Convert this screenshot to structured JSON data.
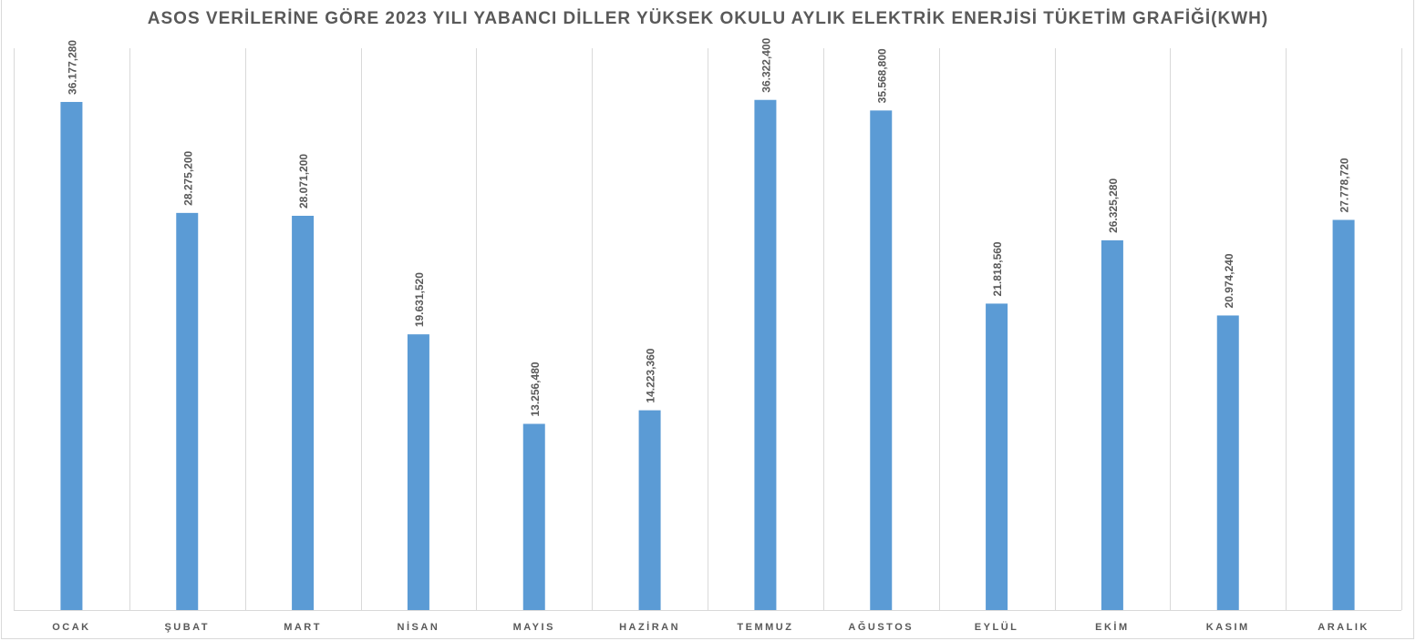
{
  "chart_data": {
    "type": "bar",
    "title": "ASOS VERİLERİNE GÖRE 2023 YILI YABANCI DİLLER YÜKSEK OKULU AYLIK ELEKTRİK ENERJİSİ TÜKETİM GRAFİĞİ(KWH)",
    "xlabel": "",
    "ylabel": "",
    "categories": [
      "OCAK",
      "ŞUBAT",
      "MART",
      "NİSAN",
      "MAYIS",
      "HAZİRAN",
      "TEMMUZ",
      "AĞUSTOS",
      "EYLÜL",
      "EKİM",
      "KASIM",
      "ARALIK"
    ],
    "values": [
      36177.28,
      28275.2,
      28071.2,
      19631.52,
      13256.48,
      14223.36,
      36322.4,
      35568.8,
      21818.56,
      26325.28,
      20974.24,
      27778.72
    ],
    "data_labels": [
      "36.177,280",
      "28.275,200",
      "28.071,200",
      "19.631,520",
      "13.256,480",
      "14.223,360",
      "36.322,400",
      "35.568,800",
      "21.818,560",
      "26.325,280",
      "20.974,240",
      "27.778,720"
    ],
    "ylim": [
      0,
      40000
    ],
    "grid": "vertical category separators",
    "legend": "none",
    "bar_color": "#5b9bd5"
  }
}
